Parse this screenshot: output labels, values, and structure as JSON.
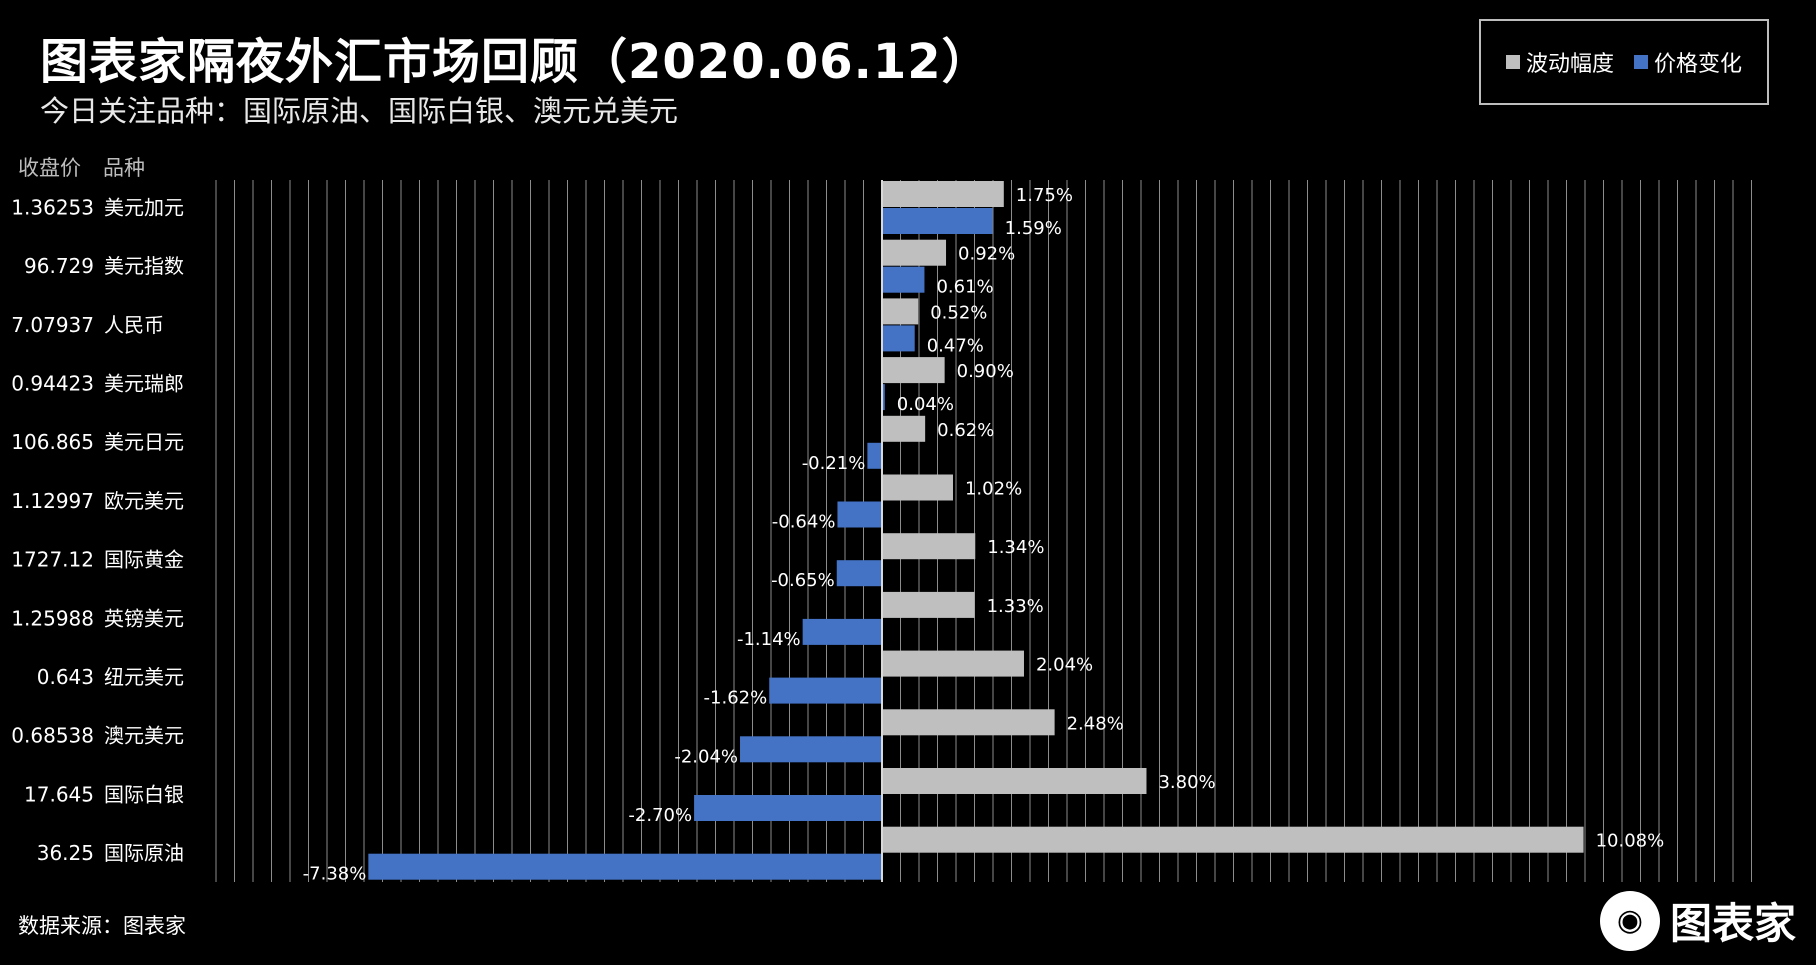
{
  "header": {
    "title": "图表家隔夜外汇市场回顾（2020.06.12）",
    "subtitle": "今日关注品种：国际原油、国际白银、澳元兑美元"
  },
  "legend": {
    "volatility_label": "波动幅度",
    "change_label": "价格变化"
  },
  "table_headers": {
    "close_price": "收盘价",
    "instrument": "品种"
  },
  "footer": {
    "source": "数据来源：图表家",
    "logo_text": "图表家"
  },
  "colors": {
    "volatility": "#bfbfbf",
    "change": "#4472c4",
    "background": "#000000",
    "grid": "#8c8c8c"
  },
  "chart_data": {
    "type": "bar",
    "orientation": "horizontal",
    "categories": [
      "美元加元",
      "美元指数",
      "人民币",
      "美元瑞郎",
      "美元日元",
      "欧元美元",
      "国际黄金",
      "英镑美元",
      "纽元美元",
      "澳元美元",
      "国际白银",
      "国际原油"
    ],
    "close_prices": [
      "1.36253",
      "96.729",
      "7.07937",
      "0.94423",
      "106.865",
      "1.12997",
      "1727.12",
      "1.25988",
      "0.643",
      "0.68538",
      "17.645",
      "36.25"
    ],
    "series": [
      {
        "name": "波动幅度",
        "values": [
          1.75,
          0.92,
          0.52,
          0.9,
          0.62,
          1.02,
          1.34,
          1.33,
          2.04,
          2.48,
          3.8,
          10.08
        ],
        "labels": [
          "1.75%",
          "0.92%",
          "0.52%",
          "0.90%",
          "0.62%",
          "1.02%",
          "1.34%",
          "1.33%",
          "2.04%",
          "2.48%",
          "3.80%",
          "10.08%"
        ]
      },
      {
        "name": "价格变化",
        "values": [
          1.59,
          0.61,
          0.47,
          0.04,
          -0.21,
          -0.64,
          -0.65,
          -1.14,
          -1.62,
          -2.04,
          -2.7,
          -7.38
        ],
        "labels": [
          "1.59%",
          "0.61%",
          "0.47%",
          "0.04%",
          "-0.21%",
          "-0.64%",
          "-0.65%",
          "-1.14%",
          "-1.62%",
          "-2.04%",
          "-2.70%",
          "-7.38%"
        ]
      }
    ],
    "xlim": [
      -8.4,
      11
    ],
    "grid": true
  }
}
